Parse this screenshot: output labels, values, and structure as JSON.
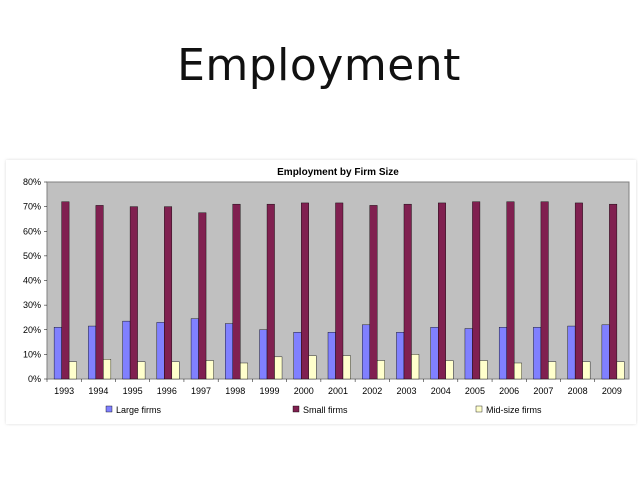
{
  "slide": {
    "title": "Employment"
  },
  "chart_data": {
    "type": "bar",
    "title": "Employment by Firm Size",
    "xlabel": "",
    "ylabel": "",
    "ylim": [
      0,
      0.8
    ],
    "y_ticks": [
      "0%",
      "10%",
      "20%",
      "30%",
      "40%",
      "50%",
      "60%",
      "70%",
      "80%"
    ],
    "grid": false,
    "legend_position": "bottom",
    "plot_background": "#c0c0c0",
    "categories": [
      "1993",
      "1994",
      "1995",
      "1996",
      "1997",
      "1998",
      "1999",
      "2000",
      "2001",
      "2002",
      "2003",
      "2004",
      "2005",
      "2006",
      "2007",
      "2008",
      "2009"
    ],
    "series": [
      {
        "name": "Large firms",
        "color": "#8080ff",
        "values": [
          0.21,
          0.215,
          0.235,
          0.23,
          0.245,
          0.225,
          0.2,
          0.19,
          0.19,
          0.22,
          0.19,
          0.21,
          0.205,
          0.21,
          0.21,
          0.215,
          0.22
        ]
      },
      {
        "name": "Small firms",
        "color": "#802050",
        "values": [
          0.72,
          0.705,
          0.7,
          0.7,
          0.675,
          0.71,
          0.71,
          0.715,
          0.715,
          0.705,
          0.71,
          0.715,
          0.72,
          0.72,
          0.72,
          0.715,
          0.71
        ]
      },
      {
        "name": "Mid-size firms",
        "color": "#ffffcc",
        "values": [
          0.07,
          0.08,
          0.07,
          0.07,
          0.075,
          0.065,
          0.09,
          0.095,
          0.095,
          0.075,
          0.1,
          0.075,
          0.075,
          0.065,
          0.07,
          0.07,
          0.07
        ]
      }
    ]
  }
}
